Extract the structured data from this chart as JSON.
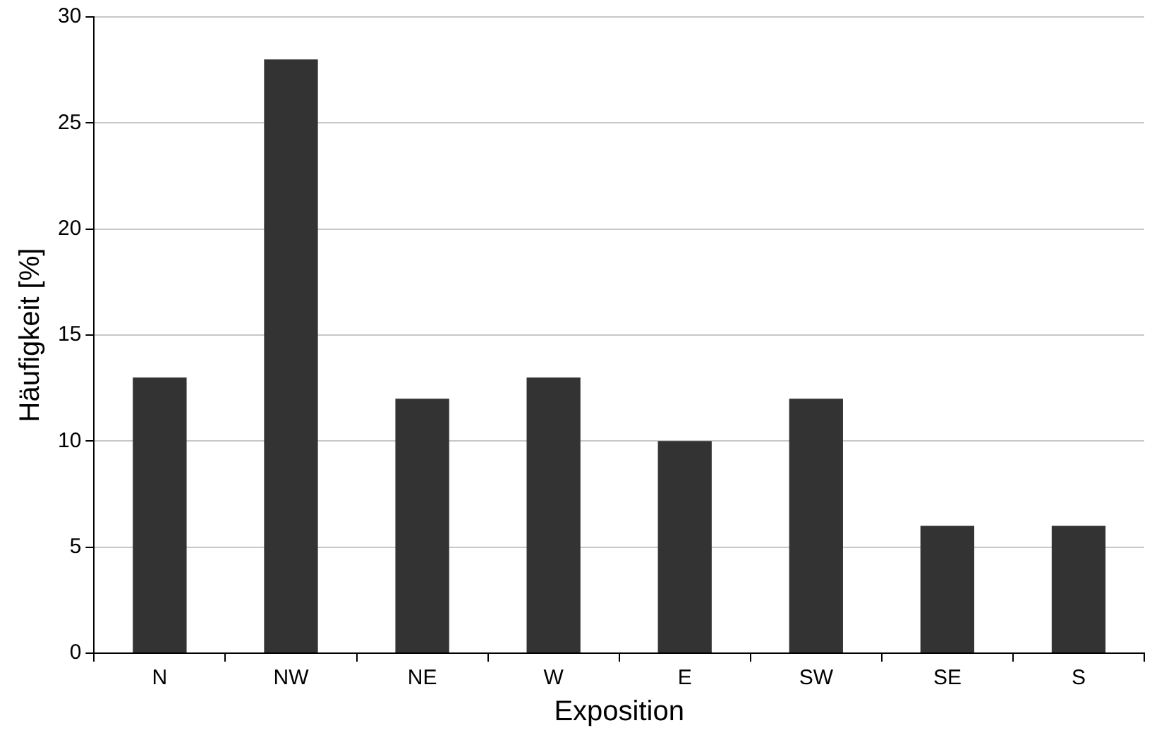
{
  "chart_data": {
    "type": "bar",
    "xlabel": "Exposition",
    "ylabel": "Häufigkeit [%]",
    "categories": [
      "N",
      "NW",
      "NE",
      "W",
      "E",
      "SW",
      "SE",
      "S"
    ],
    "values": [
      13,
      28,
      12,
      13,
      10,
      12,
      6,
      6
    ],
    "color": "#333333",
    "ylim": [
      0,
      30
    ],
    "yticks": [
      0,
      5,
      10,
      15,
      20,
      25,
      30
    ],
    "grid": "y",
    "legend": false
  }
}
